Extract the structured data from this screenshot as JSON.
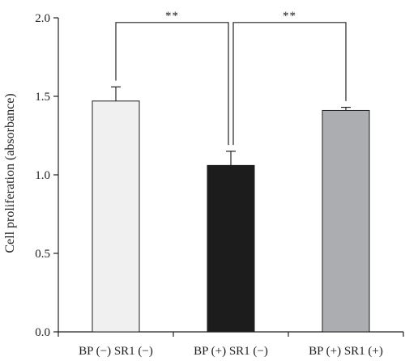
{
  "chart_data": {
    "type": "bar",
    "title": "",
    "xlabel": "",
    "ylabel": "Cell proliferation (absorbance)",
    "categories": [
      "BP (−) SR1 (−)",
      "BP (+) SR1 (−)",
      "BP (+) SR1 (+)"
    ],
    "values": [
      1.47,
      1.06,
      1.41
    ],
    "errors": [
      0.09,
      0.09,
      0.02
    ],
    "bar_colors": [
      "#f0f0f0",
      "#1c1c1c",
      "#acadb0"
    ],
    "ylim": [
      0,
      2.0
    ],
    "yticks": [
      "0.0",
      "0.5",
      "1.0",
      "1.5",
      "2.0"
    ],
    "grid": false,
    "significance": [
      {
        "from": 0,
        "to": 1,
        "label": "**"
      },
      {
        "from": 1,
        "to": 2,
        "label": "**"
      }
    ]
  }
}
